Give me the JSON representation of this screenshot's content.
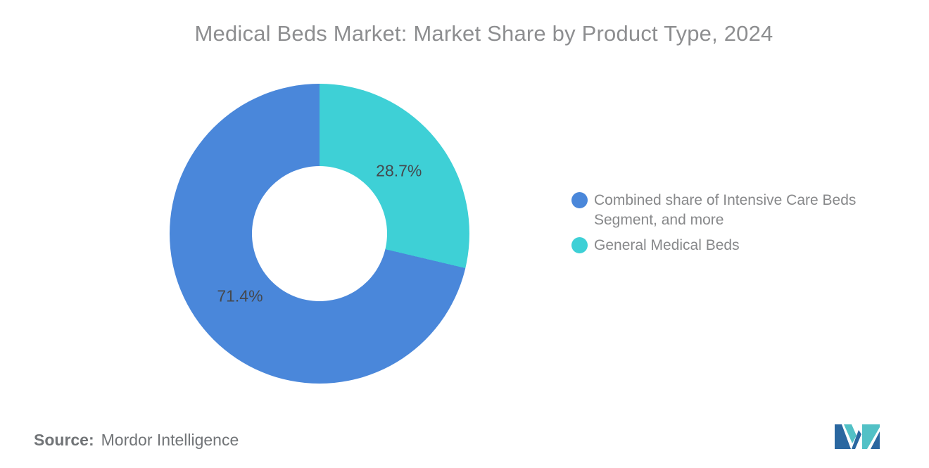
{
  "header": {
    "title": "Medical Beds Market: Market Share by Product Type, 2024"
  },
  "chart_data": {
    "type": "pie",
    "subtype": "donut",
    "title": "Medical Beds Market: Market Share by Product Type, 2024",
    "unit": "%",
    "slices": [
      {
        "label": "Combined share of Intensive Care Beds Segment, and more",
        "value": 71.4,
        "display_value": "71.4%",
        "color": "#4a87da"
      },
      {
        "label": "General Medical Beds",
        "value": 28.7,
        "display_value": "28.7%",
        "color": "#3ed0d6"
      }
    ],
    "draw_order": [
      1,
      0
    ],
    "start_angle_deg": 0,
    "clockwise": true,
    "inner_radius_ratio": 0.45,
    "label_radius_ratio": 0.675,
    "legend_position": "right"
  },
  "footer": {
    "source_label": "Source:",
    "source_value": "Mordor Intelligence"
  },
  "colors": {
    "title_text": "#8d8e90",
    "slice_label_text": "#45484d",
    "legend_text": "#87888a",
    "source_text": "#717477",
    "logo_dark_blue": "#2a67a0",
    "logo_teal": "#52c1c6",
    "background": "#ffffff"
  }
}
